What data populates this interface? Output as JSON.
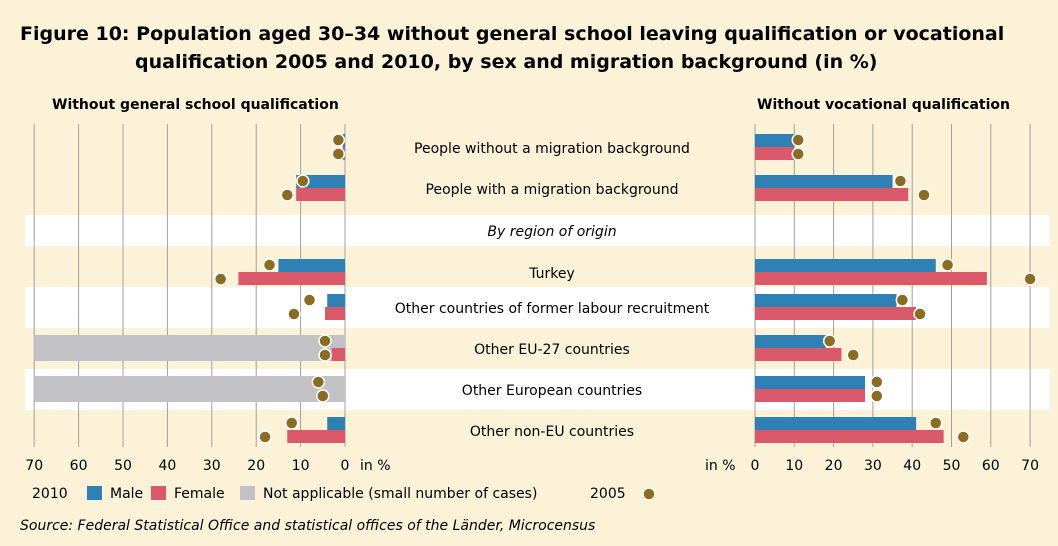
{
  "title_line1": "Figure 10:  Population aged 30–34 without general school leaving qualification or vocational",
  "title_line2": "qualification 2005 and 2010, by sex and migration background (in %)",
  "left_panel_title": "Without general school qualification",
  "right_panel_title": "Without vocational qualification",
  "region_heading": "By region of origin",
  "left_axis_unit": "in %",
  "right_axis_unit": "in %",
  "legend": {
    "year_2010": "2010",
    "male": "Male",
    "female": "Female",
    "not_applicable": "Not applicable (small number of cases)",
    "year_2005": "2005"
  },
  "source": "Source: Federal Statistical Office and statistical offices of the Länder, Microcensus",
  "colors": {
    "background": "#fbf2d8",
    "band": "#ffffff",
    "male": "#2f80b5",
    "female": "#d9586a",
    "not_applicable": "#c2c2c6",
    "dot": "#8a6d22",
    "grid": "#a0a0a0"
  },
  "chart_data": [
    {
      "type": "bar",
      "panel": "left",
      "title": "Without general school qualification",
      "orientation": "horizontal, reversed axis",
      "xlim": [
        0,
        70
      ],
      "ticks": [
        70,
        60,
        50,
        40,
        30,
        20,
        10,
        0
      ],
      "categories": [
        "People without a migration background",
        "People with a migration background",
        "Turkey",
        "Other countries of former labour recruitment",
        "Other EU-27 countries",
        "Other European countries",
        "Other non-EU countries"
      ],
      "series": [
        {
          "name": "Male",
          "year": "2010",
          "values": [
            0.5,
            11,
            15,
            4,
            null,
            null,
            4
          ]
        },
        {
          "name": "Female",
          "year": "2010",
          "values": [
            0.5,
            11,
            24,
            4.5,
            3,
            null,
            13
          ]
        },
        {
          "name": "Not applicable (small number of cases)",
          "year": "2010",
          "values": [
            null,
            null,
            null,
            null,
            70,
            70,
            null
          ]
        },
        {
          "name": "Male",
          "year": "2005",
          "values": [
            1.5,
            9.5,
            17,
            8,
            4.5,
            6,
            12
          ]
        },
        {
          "name": "Female",
          "year": "2005",
          "values": [
            1.5,
            13,
            28,
            11.5,
            4.5,
            5,
            18
          ]
        }
      ]
    },
    {
      "type": "bar",
      "panel": "right",
      "title": "Without vocational qualification",
      "orientation": "horizontal",
      "xlim": [
        0,
        70
      ],
      "ticks": [
        0,
        10,
        20,
        30,
        40,
        50,
        60,
        70
      ],
      "categories": [
        "People without a migration background",
        "People with a migration background",
        "Turkey",
        "Other countries of former labour recruitment",
        "Other EU-27 countries",
        "Other European countries",
        "Other non-EU countries"
      ],
      "series": [
        {
          "name": "Male",
          "year": "2010",
          "values": [
            10,
            35,
            46,
            36,
            18,
            28,
            41
          ]
        },
        {
          "name": "Female",
          "year": "2010",
          "values": [
            10,
            39,
            59,
            41,
            22,
            28,
            48
          ]
        },
        {
          "name": "Male",
          "year": "2005",
          "values": [
            11,
            37,
            49,
            37.5,
            19,
            31,
            46
          ]
        },
        {
          "name": "Female",
          "year": "2005",
          "values": [
            11,
            43,
            70,
            42,
            25,
            31,
            53
          ]
        }
      ]
    }
  ]
}
